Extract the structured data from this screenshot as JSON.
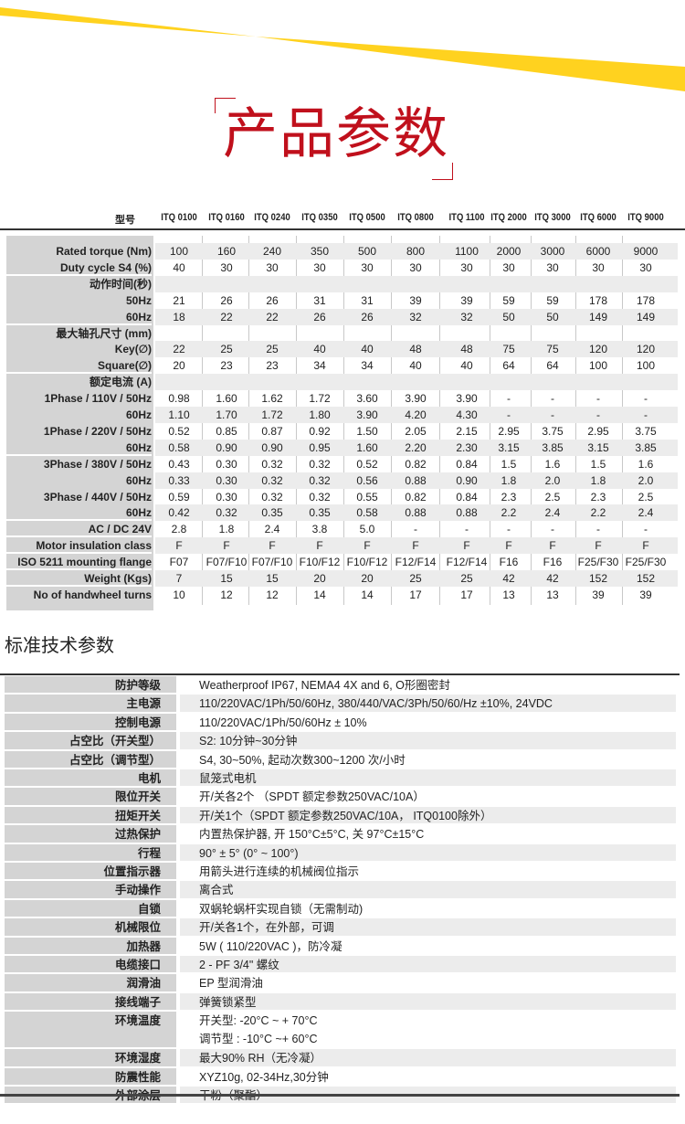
{
  "colors": {
    "accent": "#c0101c",
    "swoosh": "#ffd21f",
    "label_bg": "#d4d4d4",
    "stripe": "#ececec"
  },
  "title": "产品参数",
  "spec_table": {
    "header_label": "型号",
    "models": [
      "ITQ 0100",
      "ITQ 0160",
      "ITQ 0240",
      "ITQ 0350",
      "ITQ 0500",
      "ITQ 0800",
      "ITQ 1100",
      "ITQ 2000",
      "ITQ 3000",
      "ITQ 6000",
      "ITQ 9000"
    ],
    "rows": [
      {
        "label": "Rated torque (Nm)",
        "values": [
          "100",
          "160",
          "240",
          "350",
          "500",
          "800",
          "1100",
          "2000",
          "3000",
          "6000",
          "9000"
        ]
      },
      {
        "label": "Duty cycle S4 (%)",
        "values": [
          "40",
          "30",
          "30",
          "30",
          "30",
          "30",
          "30",
          "30",
          "30",
          "30",
          "30"
        ]
      },
      {
        "label": "动作时间(秒)",
        "values": []
      },
      {
        "label": "50Hz",
        "values": [
          "21",
          "26",
          "26",
          "31",
          "31",
          "39",
          "39",
          "59",
          "59",
          "178",
          "178"
        ]
      },
      {
        "label": "60Hz",
        "values": [
          "18",
          "22",
          "22",
          "26",
          "26",
          "32",
          "32",
          "50",
          "50",
          "149",
          "149"
        ]
      },
      {
        "label": "最大轴孔尺寸 (mm)",
        "values": []
      },
      {
        "label": "Key(∅)",
        "values": [
          "22",
          "25",
          "25",
          "40",
          "40",
          "48",
          "48",
          "75",
          "75",
          "120",
          "120"
        ]
      },
      {
        "label": "Square(∅)",
        "values": [
          "20",
          "23",
          "23",
          "34",
          "34",
          "40",
          "40",
          "64",
          "64",
          "100",
          "100"
        ]
      },
      {
        "label": "额定电流 (A)",
        "values": []
      },
      {
        "label": "1Phase / 110V / 50Hz",
        "values": [
          "0.98",
          "1.60",
          "1.62",
          "1.72",
          "3.60",
          "3.90",
          "3.90",
          "-",
          "-",
          "-",
          "-"
        ]
      },
      {
        "label": "60Hz",
        "values": [
          "1.10",
          "1.70",
          "1.72",
          "1.80",
          "3.90",
          "4.20",
          "4.30",
          "-",
          "-",
          "-",
          "-"
        ]
      },
      {
        "label": "1Phase / 220V / 50Hz",
        "values": [
          "0.52",
          "0.85",
          "0.87",
          "0.92",
          "1.50",
          "2.05",
          "2.15",
          "2.95",
          "3.75",
          "2.95",
          "3.75"
        ]
      },
      {
        "label": "60Hz",
        "values": [
          "0.58",
          "0.90",
          "0.90",
          "0.95",
          "1.60",
          "2.20",
          "2.30",
          "3.15",
          "3.85",
          "3.15",
          "3.85"
        ]
      },
      {
        "label": "3Phase / 380V / 50Hz",
        "values": [
          "0.43",
          "0.30",
          "0.32",
          "0.32",
          "0.52",
          "0.82",
          "0.84",
          "1.5",
          "1.6",
          "1.5",
          "1.6"
        ]
      },
      {
        "label": "60Hz",
        "values": [
          "0.33",
          "0.30",
          "0.32",
          "0.32",
          "0.56",
          "0.88",
          "0.90",
          "1.8",
          "2.0",
          "1.8",
          "2.0"
        ]
      },
      {
        "label": "3Phase / 440V / 50Hz",
        "values": [
          "0.59",
          "0.30",
          "0.32",
          "0.32",
          "0.55",
          "0.82",
          "0.84",
          "2.3",
          "2.5",
          "2.3",
          "2.5"
        ]
      },
      {
        "label": "60Hz",
        "values": [
          "0.42",
          "0.32",
          "0.35",
          "0.35",
          "0.58",
          "0.88",
          "0.88",
          "2.2",
          "2.4",
          "2.2",
          "2.4"
        ]
      },
      {
        "label": "AC / DC 24V",
        "values": [
          "2.8",
          "1.8",
          "2.4",
          "3.8",
          "5.0",
          "-",
          "-",
          "-",
          "-",
          "-",
          "-"
        ]
      },
      {
        "label": "Motor insulation class",
        "values": [
          "F",
          "F",
          "F",
          "F",
          "F",
          "F",
          "F",
          "F",
          "F",
          "F",
          "F"
        ]
      },
      {
        "label": "ISO 5211 mounting flange",
        "values": [
          "F07",
          "F07/F10",
          "F07/F10",
          "F10/F12",
          "F10/F12",
          "F12/F14",
          "F12/F14",
          "F16",
          "F16",
          "F25/F30",
          "F25/F30"
        ]
      },
      {
        "label": "Weight (Kgs)",
        "values": [
          "7",
          "15",
          "15",
          "20",
          "20",
          "25",
          "25",
          "42",
          "42",
          "152",
          "152"
        ]
      },
      {
        "label": "No of handwheel turns",
        "values": [
          "10",
          "12",
          "12",
          "14",
          "14",
          "17",
          "17",
          "13",
          "13",
          "39",
          "39"
        ]
      }
    ]
  },
  "standard": {
    "title": "标准技术参数",
    "rows": [
      {
        "label": "防护等级",
        "value": "Weatherproof IP67, NEMA4 4X and 6, O形圈密封"
      },
      {
        "label": "主电源",
        "value": "110/220VAC/1Ph/50/60Hz, 380/440/VAC/3Ph/50/60/Hz ±10%, 24VDC"
      },
      {
        "label": "控制电源",
        "value": "110/220VAC/1Ph/50/60Hz ± 10%"
      },
      {
        "label": "占空比（开关型）",
        "value": "S2: 10分钟~30分钟"
      },
      {
        "label": "占空比（调节型）",
        "value": "S4, 30~50%, 起动次数300~1200 次/小时"
      },
      {
        "label": "电机",
        "value": "鼠笼式电机"
      },
      {
        "label": "限位开关",
        "value": "开/关各2个 （SPDT 额定参数250VAC/10A）"
      },
      {
        "label": "扭矩开关",
        "value": "开/关1个（SPDT 额定参数250VAC/10A， ITQ0100除外）"
      },
      {
        "label": "过热保护",
        "value": "内置热保护器, 开 150°C±5°C, 关 97°C±15°C"
      },
      {
        "label": "行程",
        "value": "90° ± 5° (0° ~ 100°)"
      },
      {
        "label": "位置指示器",
        "value": "用箭头进行连续的机械阀位指示"
      },
      {
        "label": "手动操作",
        "value": "离合式"
      },
      {
        "label": "自锁",
        "value": "双蜗轮蜗杆实现自锁（无需制动)"
      },
      {
        "label": "机械限位",
        "value": "开/关各1个，在外部，可调"
      },
      {
        "label": "加热器",
        "value": "5W ( 110/220VAC )，防冷凝"
      },
      {
        "label": "电缆接口",
        "value": "2 - PF 3/4\" 螺纹"
      },
      {
        "label": "润滑油",
        "value": "EP 型润滑油"
      },
      {
        "label": "接线端子",
        "value": "弹簧锁紧型"
      },
      {
        "label": "环境温度",
        "value": "开关型: -20°C ~ + 70°C",
        "value2": "调节型 : -10°C ~+ 60°C"
      },
      {
        "label": "环境湿度",
        "value": "最大90% RH（无冷凝）"
      },
      {
        "label": "防震性能",
        "value": "XYZ10g, 02-34Hz,30分钟"
      },
      {
        "label": "外部涂层",
        "value": "干粉（聚酯）"
      }
    ]
  }
}
